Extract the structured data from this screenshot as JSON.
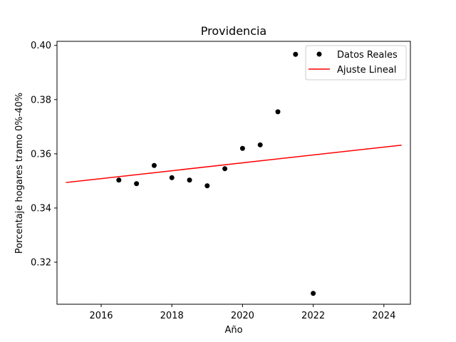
{
  "chart_data": {
    "type": "scatter",
    "title": "Providencia",
    "xlabel": "Año",
    "ylabel": "Porcentaje hogares tramo 0%-40%",
    "xlim": [
      2014.75,
      2024.75
    ],
    "ylim": [
      0.3045,
      0.4015
    ],
    "xticks": [
      2016,
      2018,
      2020,
      2022,
      2024
    ],
    "yticks": [
      0.32,
      0.34,
      0.36,
      0.38,
      0.4
    ],
    "xtick_labels": [
      "2016",
      "2018",
      "2020",
      "2022",
      "2024"
    ],
    "ytick_labels": [
      "0.32",
      "0.34",
      "0.36",
      "0.38",
      "0.40"
    ],
    "legend_position": "top-right",
    "series": [
      {
        "name": "Datos Reales",
        "kind": "scatter",
        "color": "#000000",
        "x": [
          2016.5,
          2017.0,
          2017.5,
          2018.0,
          2018.5,
          2019.0,
          2019.5,
          2020.0,
          2020.5,
          2021.0,
          2021.5,
          2022.0
        ],
        "y": [
          0.3503,
          0.349,
          0.3557,
          0.3512,
          0.3503,
          0.3482,
          0.3545,
          0.362,
          0.3633,
          0.3755,
          0.3967,
          0.3085
        ]
      },
      {
        "name": "Ajuste Lineal",
        "kind": "line",
        "color": "#ff0000",
        "x": [
          2015.0,
          2024.5
        ],
        "y": [
          0.3494,
          0.3632
        ]
      }
    ]
  }
}
